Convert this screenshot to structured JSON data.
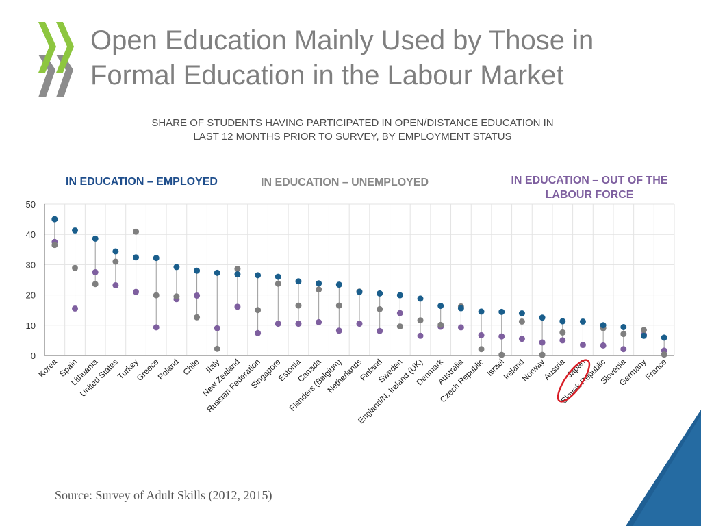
{
  "slide": {
    "title_line1": "Open Education Mainly Used by Those in",
    "title_line2": "Formal Education in the Labour Market",
    "subtitle_line1": "SHARE OF STUDENTS HAVING PARTICIPATED IN OPEN/DISTANCE EDUCATION IN",
    "subtitle_line2": "LAST 12 MONTHS PRIOR TO SURVEY, BY EMPLOYMENT STATUS",
    "source": "Source: Survey of Adult Skills (2012, 2015)",
    "highlighted_country": "Japan",
    "colors": {
      "logo_green": "#8dc63f",
      "logo_grey": "#8c8c8c",
      "corner_blue": "#1f5f94",
      "highlight_ring": "#d81e27"
    }
  },
  "chart_data": {
    "type": "scatter",
    "legend_line1": [
      "IN EDUCATION – EMPLOYED",
      "IN EDUCATION – UNEMPLOYED",
      "IN EDUCATION – OUT OF THE"
    ],
    "legend_line2": "LABOUR FORCE",
    "ylim": [
      0,
      50
    ],
    "yticks": [
      0,
      10,
      20,
      30,
      40,
      50
    ],
    "grid": true,
    "series": [
      {
        "name": "IN EDUCATION – EMPLOYED",
        "color": "#1a5e8c"
      },
      {
        "name": "IN EDUCATION – UNEMPLOYED",
        "color": "#7f7f7f"
      },
      {
        "name": "IN EDUCATION – OUT OF THE LABOUR FORCE",
        "color": "#7e5f9f"
      }
    ],
    "categories": [
      "Korea",
      "Spain",
      "Lithuania",
      "United States",
      "Turkey",
      "Greece",
      "Poland",
      "Chile",
      "Italy",
      "New Zealand",
      "Russian Federation",
      "Singapore",
      "Estonia",
      "Canada",
      "Flanders (Belgium)",
      "Netherlands",
      "Finland",
      "Sweden",
      "England/N. Ireland (UK)",
      "Denmark",
      "Australia",
      "Czech Republic",
      "Israel",
      "Ireland",
      "Norway",
      "Austria",
      "Japan",
      "Slovak Republic",
      "Slovenia",
      "Germany",
      "France"
    ],
    "employed": [
      45.0,
      41.3,
      38.6,
      34.4,
      32.4,
      32.2,
      29.2,
      28.0,
      27.3,
      26.8,
      26.5,
      26.0,
      24.5,
      23.8,
      23.4,
      21.0,
      20.5,
      19.9,
      18.8,
      16.4,
      15.6,
      14.5,
      14.4,
      13.9,
      12.5,
      11.3,
      11.2,
      10.0,
      9.4,
      6.5,
      5.9
    ],
    "unemployed": [
      36.5,
      28.9,
      23.6,
      31.0,
      40.9,
      19.9,
      19.5,
      12.6,
      2.2,
      28.6,
      15.0,
      23.7,
      16.5,
      21.8,
      16.5,
      21.1,
      15.3,
      9.6,
      11.6,
      10.1,
      16.2,
      2.1,
      0.2,
      11.2,
      0.2,
      7.6,
      null,
      9.0,
      7.1,
      8.4,
      0.3
    ],
    "out_of_labour_force": [
      37.5,
      15.5,
      27.5,
      23.2,
      21.0,
      9.3,
      18.6,
      19.8,
      9.0,
      16.1,
      7.4,
      10.5,
      10.5,
      11.0,
      8.2,
      10.5,
      8.1,
      14.0,
      6.5,
      9.5,
      9.3,
      6.7,
      6.3,
      5.5,
      4.3,
      5.0,
      3.5,
      3.3,
      2.1,
      6.9,
      1.6
    ]
  }
}
